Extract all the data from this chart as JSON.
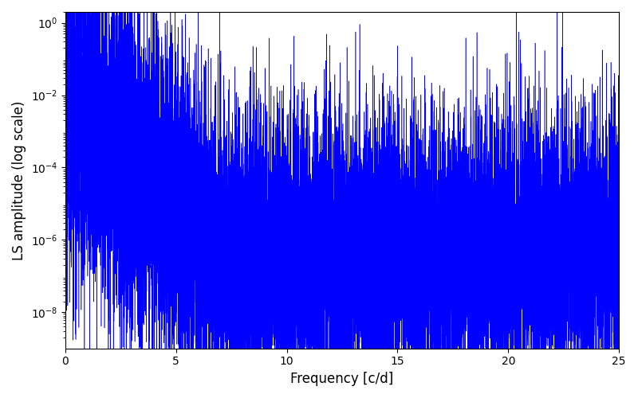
{
  "title": "",
  "xlabel": "Frequency [c/d]",
  "ylabel": "LS amplitude (log scale)",
  "line_color": "#0000ff",
  "xlim": [
    0,
    25
  ],
  "ylim": [
    1e-09,
    2.0
  ],
  "xticks": [
    0,
    5,
    10,
    15,
    20,
    25
  ],
  "yticks": [
    1e-08,
    1e-06,
    0.0001,
    0.01,
    1.0
  ],
  "figsize": [
    8.0,
    5.0
  ],
  "dpi": 100,
  "seed": 12345,
  "n_points": 15000,
  "freq_max": 25.0
}
